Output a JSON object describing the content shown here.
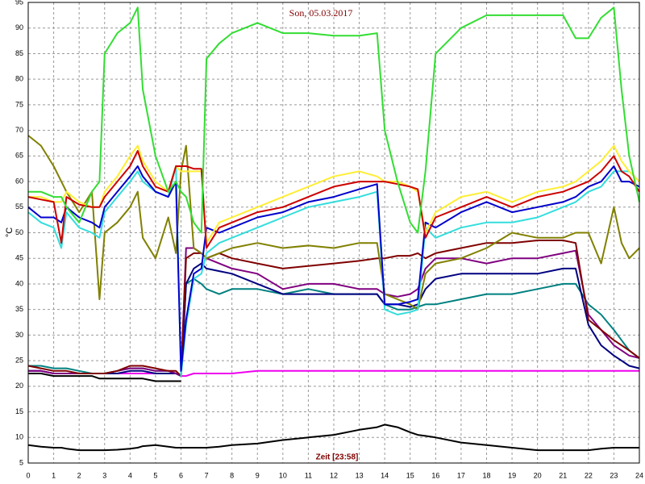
{
  "chart_data": {
    "type": "line",
    "title": "Son, 05.03.2017",
    "x_label": "Zeit [23:58]",
    "y_label": "°C",
    "x": [
      0,
      0.5,
      1,
      1.3,
      1.5,
      2,
      2.5,
      2.8,
      3,
      3.5,
      4,
      4.3,
      4.5,
      5,
      5.5,
      5.8,
      6,
      6.2,
      6.5,
      6.8,
      7,
      7.5,
      8,
      9,
      10,
      11,
      12,
      13,
      13.7,
      14,
      14.5,
      15,
      15.3,
      15.6,
      16,
      17,
      18,
      19,
      20,
      21,
      21.5,
      22,
      22.5,
      23,
      23.3,
      23.6,
      24
    ],
    "xlim": [
      0,
      24
    ],
    "xticks": [
      0,
      1,
      2,
      3,
      4,
      5,
      6,
      7,
      8,
      9,
      10,
      11,
      12,
      13,
      14,
      15,
      16,
      17,
      18,
      19,
      20,
      21,
      22,
      23,
      24
    ],
    "ylim": [
      5,
      95
    ],
    "yticks": [
      5,
      10,
      15,
      20,
      25,
      30,
      35,
      40,
      45,
      50,
      55,
      60,
      65,
      70,
      75,
      80,
      85,
      90,
      95
    ],
    "grid": true,
    "series": [
      {
        "color": "#000000",
        "values": [
          8.5,
          8.2,
          8,
          8,
          7.8,
          7.5,
          7.5,
          7.5,
          7.5,
          7.6,
          7.8,
          8,
          8.3,
          8.5,
          8.2,
          8,
          8,
          8,
          8,
          8,
          8,
          8.2,
          8.5,
          8.8,
          9.5,
          10,
          10.5,
          11.5,
          12,
          12.5,
          12,
          11,
          10.5,
          10.3,
          10,
          9,
          8.5,
          8,
          7.5,
          7.5,
          7.5,
          7.5,
          7.8,
          8,
          8,
          8,
          8
        ]
      },
      {
        "color": "#000000",
        "values": [
          22.5,
          22.5,
          22,
          22,
          22,
          22,
          22,
          21.5,
          21.5,
          21.5,
          21.5,
          21.5,
          21.5,
          21,
          21,
          21,
          21,
          null,
          null,
          null,
          null,
          null,
          null,
          null,
          null,
          null,
          null,
          null,
          null,
          null,
          null,
          null,
          null,
          null,
          null,
          null,
          null,
          null,
          null,
          null,
          null,
          null,
          null,
          null,
          null,
          null,
          null
        ]
      },
      {
        "color": "#ee00ee",
        "values": [
          23,
          23,
          22.5,
          22.5,
          22.5,
          22.5,
          22.5,
          22.5,
          22.5,
          22.5,
          22.5,
          22.5,
          22.5,
          22.5,
          22.5,
          22.5,
          22,
          22,
          22.5,
          22.5,
          22.5,
          22.5,
          22.5,
          23,
          23,
          23,
          23,
          23,
          23,
          23,
          23,
          23,
          23,
          23,
          23,
          23,
          23,
          23,
          23,
          23,
          23,
          23,
          23,
          23,
          23,
          23,
          23
        ]
      },
      {
        "color": "#008080",
        "values": [
          24,
          24,
          23.5,
          23.5,
          23.5,
          23,
          22.5,
          22.5,
          22.5,
          23,
          23.5,
          23.5,
          23.5,
          23,
          23,
          22.5,
          22,
          40,
          41,
          40,
          39,
          38,
          39,
          39,
          38,
          39,
          38,
          38,
          38,
          36,
          35,
          35,
          35.5,
          36,
          36,
          37,
          38,
          38,
          39,
          40,
          40,
          36,
          34,
          31,
          29,
          27,
          25.5
        ]
      },
      {
        "color": "#000080",
        "values": [
          23,
          23,
          22.5,
          22.5,
          22.5,
          22.5,
          22.5,
          22.5,
          22.5,
          22.5,
          23,
          23,
          23,
          22.5,
          22.5,
          22.5,
          22,
          40,
          43,
          44,
          43,
          42.5,
          42,
          40,
          38,
          38,
          38,
          38,
          38,
          36,
          36,
          35.5,
          36,
          39,
          41,
          42,
          42,
          42,
          42,
          43,
          43,
          32,
          28,
          26,
          25,
          24,
          23.5
        ]
      },
      {
        "color": "#800080",
        "values": [
          23,
          23,
          22.5,
          22.5,
          22.5,
          22.5,
          22.5,
          22.5,
          22.5,
          23,
          23.5,
          23.5,
          23.5,
          23,
          23,
          22.5,
          22,
          47,
          47,
          46,
          45,
          44,
          43,
          42,
          39,
          40,
          40,
          39,
          39,
          38,
          37.5,
          38,
          39,
          43,
          45,
          45,
          44,
          45,
          45,
          46,
          46.5,
          34,
          31,
          28,
          27,
          26,
          25.5
        ]
      },
      {
        "color": "#800000",
        "values": [
          24,
          23.5,
          23,
          23,
          23,
          22.5,
          22.5,
          22.5,
          22.5,
          23,
          24,
          24,
          24,
          23.5,
          23,
          23,
          22,
          45,
          46,
          46,
          45,
          46,
          45,
          44,
          43,
          43.5,
          44,
          44.5,
          45,
          45,
          45.5,
          45.5,
          46,
          45,
          46,
          47,
          48,
          48,
          48.5,
          48.5,
          48,
          33,
          31,
          29,
          28,
          27,
          25.5
        ]
      },
      {
        "color": "#808000",
        "values": [
          69,
          67,
          63,
          60,
          58,
          54,
          58,
          37,
          50,
          52,
          55,
          58,
          49,
          45,
          53,
          46,
          62,
          67,
          47,
          46,
          45,
          46,
          47,
          48,
          47,
          47.5,
          47,
          48,
          48,
          38,
          37,
          36,
          35,
          42,
          44,
          45,
          47,
          50,
          49,
          49,
          50,
          50,
          44,
          55,
          48,
          45,
          47
        ]
      },
      {
        "color": "#33dddd",
        "values": [
          54,
          52,
          51,
          47,
          54,
          51,
          50,
          49,
          54,
          57,
          60,
          62,
          60,
          58,
          57,
          63,
          22,
          32,
          41,
          42,
          46,
          48,
          49,
          51,
          53,
          55,
          56,
          57,
          58,
          35,
          34,
          34.5,
          35,
          51,
          49,
          51,
          52,
          52,
          53,
          55,
          56,
          58,
          59,
          62,
          62,
          62,
          60
        ]
      },
      {
        "color": "#0000cc",
        "values": [
          55,
          53,
          53,
          52,
          55,
          53,
          52,
          51,
          55,
          58,
          61,
          63,
          61,
          58,
          57,
          60,
          23,
          33,
          42,
          43,
          51,
          50,
          51,
          53,
          54,
          56,
          57,
          58.5,
          59.5,
          36,
          36,
          36.5,
          37,
          52,
          51,
          54,
          56,
          54,
          55,
          56,
          57,
          59,
          60,
          63,
          60,
          60,
          59
        ]
      },
      {
        "color": "#ffee33",
        "values": [
          57,
          57,
          56,
          56,
          58,
          56,
          55,
          55,
          58,
          61,
          65,
          67,
          64,
          60,
          58,
          63,
          62,
          62,
          62,
          62,
          48,
          52,
          53,
          55,
          57,
          59,
          61,
          62,
          61,
          60,
          60,
          59,
          58,
          50,
          54,
          57,
          58,
          56,
          58,
          59,
          60,
          62,
          64,
          67,
          64,
          62,
          60
        ]
      },
      {
        "color": "#cc0000",
        "values": [
          57,
          56.5,
          56,
          48,
          57,
          55.5,
          55,
          55,
          57,
          60,
          63,
          66,
          63,
          59,
          58,
          63,
          63,
          63,
          62.5,
          62.5,
          47,
          51,
          52,
          54,
          55,
          57,
          59,
          60,
          60,
          60,
          59.5,
          59,
          58.5,
          49,
          53,
          55,
          57,
          55,
          57,
          58,
          59,
          60,
          62,
          65,
          62,
          61,
          58
        ]
      },
      {
        "color": "#33dd33",
        "values": [
          58,
          58,
          57,
          57,
          55,
          52,
          58,
          60,
          85,
          89,
          91,
          94,
          78,
          65,
          58,
          60,
          58,
          57,
          52,
          50,
          84,
          87,
          89,
          91,
          89,
          89,
          88.5,
          88.5,
          89,
          70,
          60,
          52,
          50,
          62,
          85,
          90,
          92.5,
          92.5,
          92.5,
          92.5,
          88,
          88,
          92,
          94,
          78,
          65,
          56
        ]
      }
    ]
  }
}
